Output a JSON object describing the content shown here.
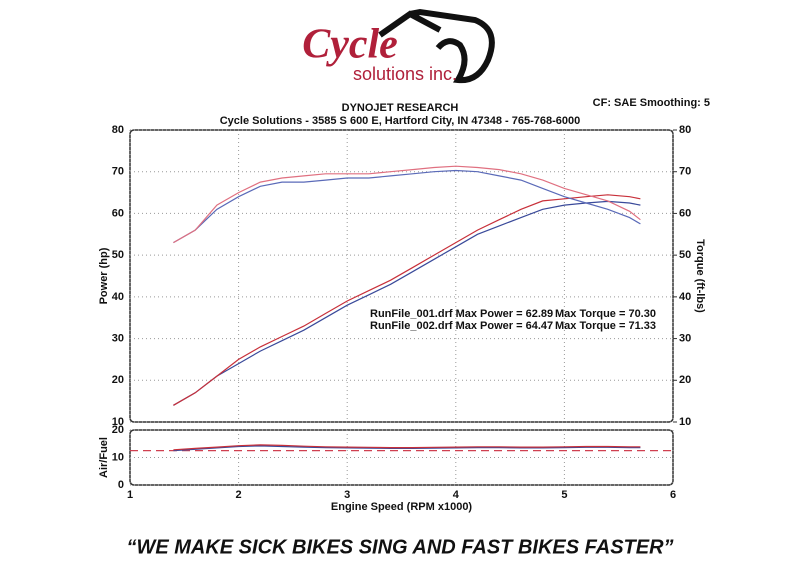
{
  "header": {
    "logo_name": "Cycle",
    "logo_sub": "solutions inc.",
    "title": "DYNOJET RESEARCH",
    "subtitle": "Cycle Solutions - 3585 S 600 E, Hartford City, IN  47348 - 765-768-6000",
    "settings": "CF: SAE  Smoothing: 5"
  },
  "chart_data": [
    {
      "type": "line",
      "ylabel": "Power (hp)",
      "y2label": "Torque (ft-lbs)",
      "annotations": [
        [
          "RunFile_001.drf Max Power = 62.89",
          "Max Torque = 70.30"
        ],
        [
          "RunFile_002.drf Max Power = 64.47",
          "Max Torque = 71.33"
        ]
      ],
      "x": [
        1.4,
        1.6,
        1.8,
        2.0,
        2.2,
        2.4,
        2.6,
        2.8,
        3.0,
        3.2,
        3.4,
        3.6,
        3.8,
        4.0,
        4.2,
        4.4,
        4.6,
        4.8,
        5.0,
        5.2,
        5.4,
        5.6,
        5.7
      ],
      "series": [
        {
          "color": "#3a4a9a",
          "values": [
            14,
            17,
            21,
            24,
            27,
            29.5,
            32,
            35,
            38,
            40.5,
            43,
            46,
            49,
            52,
            55,
            57,
            59,
            61,
            62,
            62.5,
            62.89,
            62.5,
            62
          ]
        },
        {
          "color": "#c8303a",
          "values": [
            14,
            17,
            21,
            25,
            28,
            30.5,
            33,
            36,
            39,
            41.5,
            44,
            47,
            50,
            53,
            56,
            58.5,
            61,
            63,
            63.5,
            64,
            64.47,
            64,
            63.5
          ]
        },
        {
          "color": "#5a6ab8",
          "axis": "y2",
          "values": [
            53,
            56,
            61,
            64,
            66.5,
            67.5,
            67.5,
            68,
            68.5,
            68.5,
            69,
            69.5,
            70,
            70.3,
            70,
            69,
            68,
            66,
            64,
            62.5,
            61,
            59,
            57.5
          ]
        },
        {
          "color": "#e07080",
          "axis": "y2",
          "values": [
            53,
            56,
            62,
            65,
            67.5,
            68.5,
            69,
            69.5,
            69.5,
            69.5,
            70,
            70.5,
            71,
            71.33,
            71,
            70.5,
            69.5,
            68,
            66,
            64.5,
            63,
            60.5,
            58.5
          ]
        }
      ],
      "xlim": [
        1,
        6
      ],
      "xticks": [
        1,
        2,
        3,
        4,
        5,
        6
      ],
      "ylim": [
        10,
        80
      ],
      "yticks": [
        10,
        20,
        30,
        40,
        50,
        60,
        70,
        80
      ],
      "y2lim": [
        10,
        80
      ],
      "y2ticks": [
        10,
        20,
        30,
        40,
        50,
        60,
        70,
        80
      ],
      "grid": true
    },
    {
      "type": "line",
      "ylabel": "Air/Fuel",
      "xlabel": "Engine Speed (RPM x1000)",
      "x": [
        1.4,
        1.6,
        1.8,
        2.0,
        2.2,
        2.4,
        2.6,
        2.8,
        3.0,
        3.2,
        3.4,
        3.6,
        3.8,
        4.0,
        4.2,
        4.4,
        4.6,
        4.8,
        5.0,
        5.2,
        5.4,
        5.6,
        5.7
      ],
      "series": [
        {
          "color": "#3a4a9a",
          "values": [
            12.5,
            13,
            13.5,
            14,
            14.2,
            14,
            13.8,
            13.6,
            13.5,
            13.4,
            13.3,
            13.3,
            13.4,
            13.5,
            13.6,
            13.6,
            13.5,
            13.5,
            13.6,
            13.7,
            13.7,
            13.6,
            13.6
          ]
        },
        {
          "color": "#c8303a",
          "values": [
            12.8,
            13.3,
            13.8,
            14.3,
            14.6,
            14.4,
            14.1,
            13.9,
            13.8,
            13.7,
            13.6,
            13.6,
            13.7,
            13.8,
            13.9,
            13.9,
            13.8,
            13.8,
            13.9,
            14,
            14,
            13.9,
            13.9
          ]
        }
      ],
      "reference": {
        "value": 12.5,
        "color": "#d04050"
      },
      "xlim": [
        1,
        6
      ],
      "xticks": [
        1,
        2,
        3,
        4,
        5,
        6
      ],
      "ylim": [
        0,
        20
      ],
      "yticks": [
        0,
        10,
        20
      ],
      "grid": true
    }
  ],
  "footer": {
    "tagline": "“WE MAKE SICK BIKES SING AND FAST BIKES FASTER”"
  }
}
